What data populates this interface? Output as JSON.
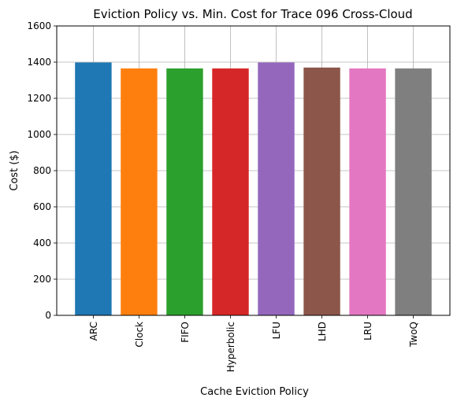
{
  "chart_data": {
    "type": "bar",
    "title": "Eviction Policy vs. Min. Cost for Trace 096 Cross-Cloud",
    "xlabel": "Cache Eviction Policy",
    "ylabel": "Cost ($)",
    "categories": [
      "ARC",
      "Clock",
      "FIFO",
      "Hyperbolic",
      "LFU",
      "LHD",
      "LRU",
      "TwoQ"
    ],
    "values": [
      1398,
      1365,
      1365,
      1365,
      1398,
      1370,
      1365,
      1365
    ],
    "colors": [
      "#1f77b4",
      "#ff7f0e",
      "#2ca02c",
      "#d62728",
      "#9467bd",
      "#8c564b",
      "#e377c2",
      "#7f7f7f"
    ],
    "ylim": [
      0,
      1600
    ],
    "yticks": [
      0,
      200,
      400,
      600,
      800,
      1000,
      1200,
      1400,
      1600
    ],
    "grid": true,
    "x_tick_rotation": "vertical",
    "legend": false
  }
}
